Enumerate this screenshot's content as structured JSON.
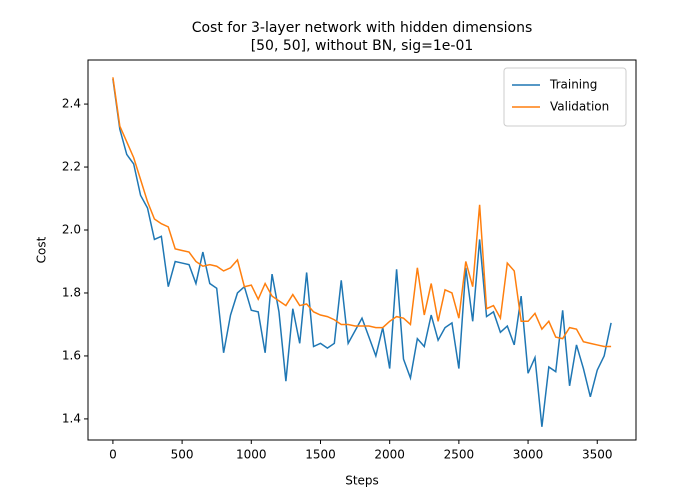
{
  "chart_data": {
    "type": "line",
    "title": [
      "Cost for 3-layer network with hidden dimensions",
      "[50, 50], without BN, sig=1e-01"
    ],
    "x_label": "Steps",
    "y_label": "Cost",
    "x": [
      0,
      50,
      100,
      150,
      200,
      250,
      300,
      350,
      400,
      450,
      500,
      550,
      600,
      650,
      700,
      750,
      800,
      850,
      900,
      950,
      1000,
      1050,
      1100,
      1150,
      1200,
      1250,
      1300,
      1350,
      1400,
      1450,
      1500,
      1550,
      1600,
      1650,
      1700,
      1750,
      1800,
      1850,
      1900,
      1950,
      2000,
      2050,
      2100,
      2150,
      2200,
      2250,
      2300,
      2350,
      2400,
      2450,
      2500,
      2550,
      2600,
      2650,
      2700,
      2750,
      2800,
      2850,
      2900,
      2950,
      3000,
      3050,
      3100,
      3150,
      3200,
      3250,
      3300,
      3350,
      3400,
      3450,
      3500,
      3550,
      3600
    ],
    "series": [
      {
        "name": "Training",
        "color": "#1f77b4",
        "values": [
          2.48,
          2.32,
          2.24,
          2.21,
          2.11,
          2.07,
          1.97,
          1.98,
          1.82,
          1.9,
          1.895,
          1.89,
          1.83,
          1.93,
          1.83,
          1.815,
          1.61,
          1.73,
          1.8,
          1.82,
          1.745,
          1.74,
          1.61,
          1.86,
          1.74,
          1.52,
          1.75,
          1.64,
          1.865,
          1.63,
          1.64,
          1.625,
          1.64,
          1.84,
          1.64,
          1.68,
          1.72,
          1.66,
          1.6,
          1.69,
          1.56,
          1.875,
          1.59,
          1.53,
          1.655,
          1.63,
          1.73,
          1.65,
          1.69,
          1.705,
          1.56,
          1.88,
          1.71,
          1.97,
          1.725,
          1.74,
          1.675,
          1.695,
          1.635,
          1.79,
          1.545,
          1.595,
          1.375,
          1.565,
          1.55,
          1.745,
          1.505,
          1.635,
          1.56,
          1.47,
          1.555,
          1.6,
          1.705
        ]
      },
      {
        "name": "Validation",
        "color": "#ff7f0e",
        "values": [
          2.485,
          2.33,
          2.28,
          2.23,
          2.16,
          2.09,
          2.035,
          2.02,
          2.01,
          1.94,
          1.935,
          1.93,
          1.9,
          1.885,
          1.89,
          1.885,
          1.87,
          1.88,
          1.905,
          1.82,
          1.825,
          1.78,
          1.83,
          1.79,
          1.775,
          1.76,
          1.795,
          1.76,
          1.765,
          1.74,
          1.73,
          1.725,
          1.715,
          1.7,
          1.7,
          1.695,
          1.695,
          1.695,
          1.69,
          1.69,
          1.71,
          1.725,
          1.72,
          1.7,
          1.88,
          1.73,
          1.83,
          1.71,
          1.81,
          1.8,
          1.72,
          1.9,
          1.82,
          2.08,
          1.75,
          1.76,
          1.72,
          1.895,
          1.87,
          1.71,
          1.71,
          1.735,
          1.685,
          1.71,
          1.66,
          1.655,
          1.69,
          1.685,
          1.645,
          1.64,
          1.635,
          1.63,
          1.63
        ]
      }
    ],
    "xlim": [
      -180,
      3780
    ],
    "ylim": [
      1.333,
      2.54
    ],
    "xticks": [
      0,
      500,
      1000,
      1500,
      2000,
      2500,
      3000,
      3500
    ],
    "yticks": [
      1.4,
      1.6,
      1.8,
      {
        "value": 2,
        "label": "2.0"
      },
      2.2,
      2.4
    ],
    "grid": false,
    "legend": "upper right"
  }
}
